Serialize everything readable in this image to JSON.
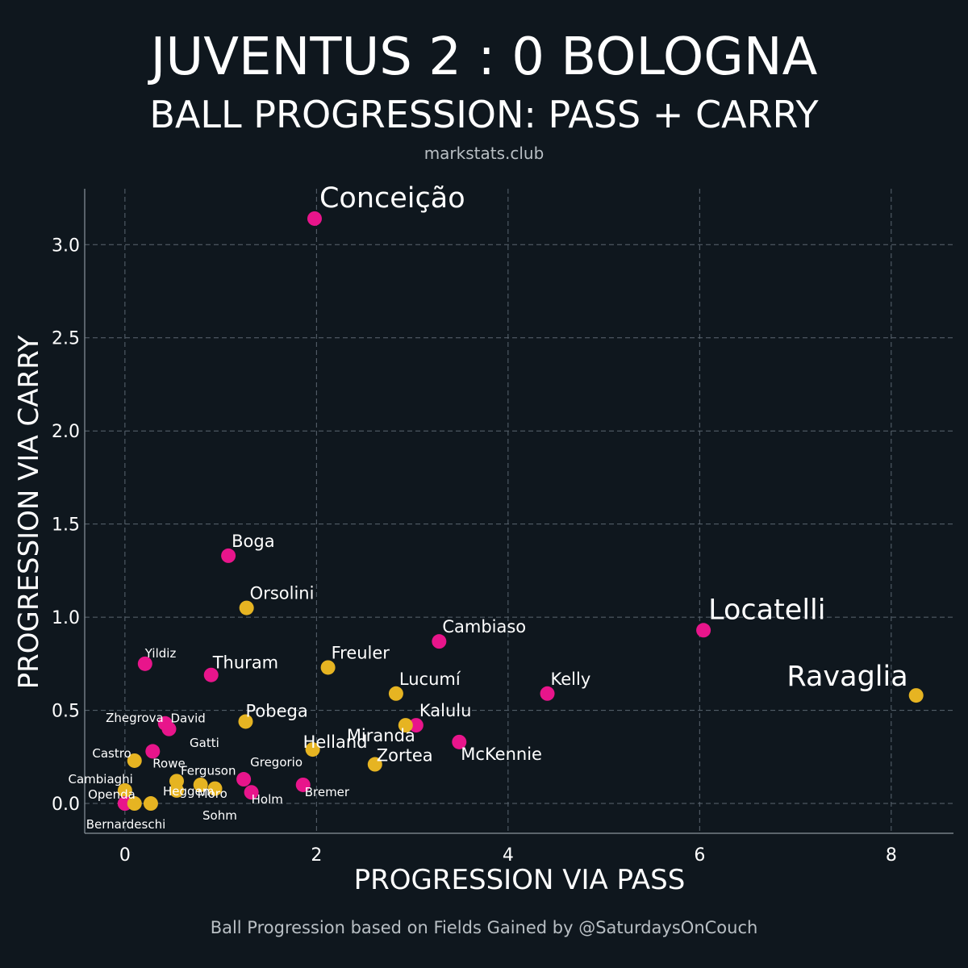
{
  "header": {
    "title": "JUVENTUS 2 : 0 BOLOGNA",
    "subtitle": "BALL PROGRESSION: PASS + CARRY",
    "source": "markstats.club"
  },
  "caption": "Ball Progression based on Fields Gained by @SaturdaysOnCouch",
  "colors": {
    "background": "#0f171e",
    "juventus": "#e8158b",
    "bologna": "#e6b422"
  },
  "chart_data": {
    "type": "scatter",
    "xlabel": "PROGRESSION VIA PASS",
    "ylabel": "PROGRESSION VIA CARRY",
    "xlim": [
      -0.42,
      8.65
    ],
    "ylim": [
      -0.16,
      3.3
    ],
    "xticks": [
      0,
      2,
      4,
      6,
      8
    ],
    "xtick_labels": [
      "0",
      "2",
      "4",
      "6",
      "8"
    ],
    "yticks": [
      0.0,
      0.5,
      1.0,
      1.5,
      2.0,
      2.5,
      3.0
    ],
    "ytick_labels": [
      "0.0",
      "0.5",
      "1.0",
      "1.5",
      "2.0",
      "2.5",
      "3.0"
    ],
    "grid": true,
    "points": [
      {
        "name": "Conceição",
        "x": 1.98,
        "y": 3.14,
        "team": "juventus",
        "size": "large"
      },
      {
        "name": "Locatelli",
        "x": 6.04,
        "y": 0.93,
        "team": "juventus",
        "size": "large"
      },
      {
        "name": "Ravaglia",
        "x": 8.26,
        "y": 0.58,
        "team": "bologna",
        "size": "large"
      },
      {
        "name": "Boga",
        "x": 1.08,
        "y": 1.33,
        "team": "juventus",
        "size": "medium"
      },
      {
        "name": "Orsolini",
        "x": 1.27,
        "y": 1.05,
        "team": "bologna",
        "size": "medium"
      },
      {
        "name": "Cambiaso",
        "x": 3.28,
        "y": 0.87,
        "team": "juventus",
        "size": "medium"
      },
      {
        "name": "Freuler",
        "x": 2.12,
        "y": 0.73,
        "team": "bologna",
        "size": "medium"
      },
      {
        "name": "Kelly",
        "x": 4.41,
        "y": 0.59,
        "team": "juventus",
        "size": "medium"
      },
      {
        "name": "Lucumí",
        "x": 2.83,
        "y": 0.59,
        "team": "bologna",
        "size": "medium"
      },
      {
        "name": "Kalulu",
        "x": 3.04,
        "y": 0.42,
        "team": "juventus",
        "size": "medium"
      },
      {
        "name": "Miranda",
        "x": 2.93,
        "y": 0.42,
        "team": "bologna",
        "size": "medium"
      },
      {
        "name": "McKennie",
        "x": 3.49,
        "y": 0.33,
        "team": "juventus",
        "size": "medium"
      },
      {
        "name": "Zortea",
        "x": 2.61,
        "y": 0.21,
        "team": "bologna",
        "size": "medium"
      },
      {
        "name": "Helland",
        "x": 1.96,
        "y": 0.29,
        "team": "bologna",
        "size": "medium"
      },
      {
        "name": "Pobega",
        "x": 1.26,
        "y": 0.44,
        "team": "bologna",
        "size": "medium"
      },
      {
        "name": "Thuram",
        "x": 0.9,
        "y": 0.69,
        "team": "juventus",
        "size": "medium"
      },
      {
        "name": "Yildiz",
        "x": 0.21,
        "y": 0.75,
        "team": "juventus",
        "size": "small"
      },
      {
        "name": "Zhegrova",
        "x": 0.42,
        "y": 0.43,
        "team": "juventus",
        "size": "small"
      },
      {
        "name": "David",
        "x": 0.46,
        "y": 0.4,
        "team": "juventus",
        "size": "small"
      },
      {
        "name": "Gatti",
        "x": 0.0,
        "y": 0.0,
        "team": "juventus",
        "size": "small"
      },
      {
        "name": "Rowe",
        "x": 0.29,
        "y": 0.28,
        "team": "juventus",
        "size": "small"
      },
      {
        "name": "Castro",
        "x": 0.1,
        "y": 0.23,
        "team": "bologna",
        "size": "small"
      },
      {
        "name": "Gregorio",
        "x": 1.24,
        "y": 0.13,
        "team": "juventus",
        "size": "small"
      },
      {
        "name": "Ferguson",
        "x": 0.54,
        "y": 0.12,
        "team": "bologna",
        "size": "small"
      },
      {
        "name": "Bremer",
        "x": 1.86,
        "y": 0.1,
        "team": "juventus",
        "size": "small"
      },
      {
        "name": "Cambiaghi",
        "x": 0.0,
        "y": 0.07,
        "team": "bologna",
        "size": "small"
      },
      {
        "name": "Moro",
        "x": 0.79,
        "y": 0.1,
        "team": "bologna",
        "size": "small"
      },
      {
        "name": "Holm",
        "x": 1.32,
        "y": 0.06,
        "team": "juventus",
        "size": "small"
      },
      {
        "name": "Heggem",
        "x": 0.54,
        "y": 0.07,
        "team": "bologna",
        "size": "small"
      },
      {
        "name": "Sohm",
        "x": 0.94,
        "y": 0.08,
        "team": "bologna",
        "size": "small"
      },
      {
        "name": "Openda",
        "x": 0.0,
        "y": 0.0,
        "team": "juventus",
        "size": "small"
      },
      {
        "name": "Bernardeschi",
        "x": 0.1,
        "y": 0.0,
        "team": "bologna",
        "size": "small"
      }
    ],
    "extra_points": [
      {
        "x": 0.27,
        "y": 0.0,
        "team": "bologna"
      }
    ]
  }
}
